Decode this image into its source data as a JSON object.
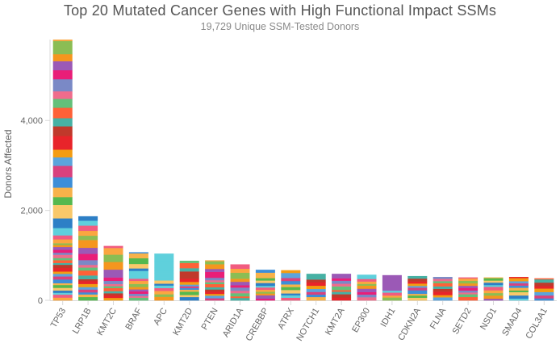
{
  "chart_data": {
    "type": "bar",
    "stacked": true,
    "title": "Top 20 Mutated Cancer Genes with High Functional Impact SSMs",
    "subtitle": "19,729 Unique SSM-Tested Donors",
    "ylabel": "Donors Affected",
    "xlabel": "",
    "ylim": [
      0,
      5800
    ],
    "y_ticks": [
      0,
      2000,
      4000
    ],
    "y_tick_labels": [
      "0",
      "2,000",
      "4,000"
    ],
    "grid": false,
    "legend": "none",
    "categories": [
      "TP53",
      "LRP1B",
      "KMT2C",
      "BRAF",
      "APC",
      "KMT2D",
      "PTEN",
      "ARID1A",
      "CREBBP",
      "ATRX",
      "NOTCH1",
      "KMT2A",
      "EP300",
      "IDH1",
      "CDKN2A",
      "FLNA",
      "SETD2",
      "NSD1",
      "SMAD4",
      "COL3A1"
    ],
    "values": [
      5800,
      1870,
      1210,
      1070,
      1040,
      880,
      890,
      800,
      680,
      670,
      590,
      590,
      570,
      560,
      540,
      520,
      510,
      510,
      520,
      490
    ]
  },
  "colors": {
    "palette": [
      "#fba640",
      "#5ba4dc",
      "#e91e78",
      "#55b84e",
      "#fe6138",
      "#f15c80",
      "#f39c12",
      "#9b59b6",
      "#f7b24a",
      "#63c07a",
      "#5fd0dc",
      "#e8242a",
      "#f5961e",
      "#3d8ed8",
      "#ef6c8c",
      "#2d7fc6",
      "#c0392b",
      "#8bbd54",
      "#d9417d",
      "#7a89c6",
      "#f9c86a",
      "#46b1a4"
    ],
    "axis": "#d9d9d9",
    "text": "#666666"
  }
}
